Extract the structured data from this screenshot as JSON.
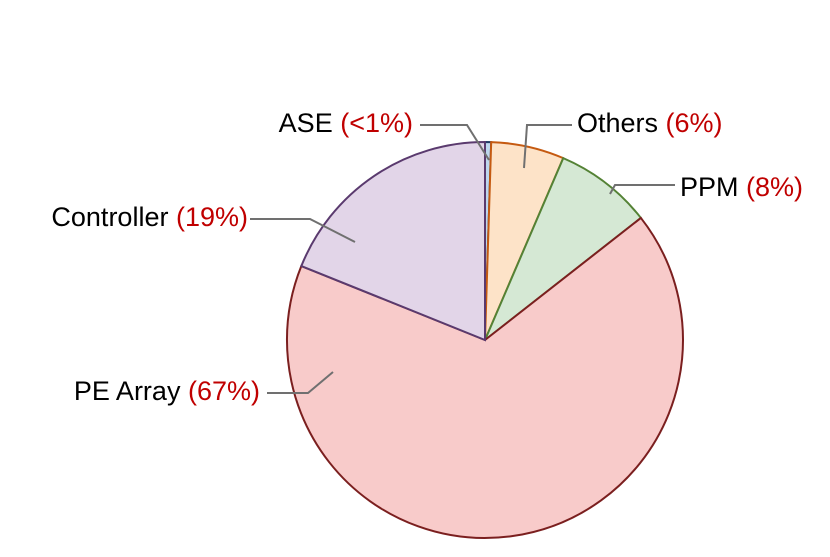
{
  "chart_data": {
    "type": "pie",
    "categories": [
      "ASE",
      "Others",
      "PPM",
      "PE Array",
      "Controller"
    ],
    "values": [
      0.5,
      6,
      8,
      67,
      19
    ],
    "value_labels": [
      "(<1%)",
      "(6%)",
      "(8%)",
      "(67%)",
      "(19%)"
    ],
    "colors": [
      "#bdd7ee",
      "#fde3c8",
      "#d5e8d4",
      "#f8cbca",
      "#e2d5e8"
    ],
    "edge_colors": [
      "#1f3864",
      "#c55a11",
      "#548235",
      "#7b1f1f",
      "#5a3a6e"
    ]
  }
}
